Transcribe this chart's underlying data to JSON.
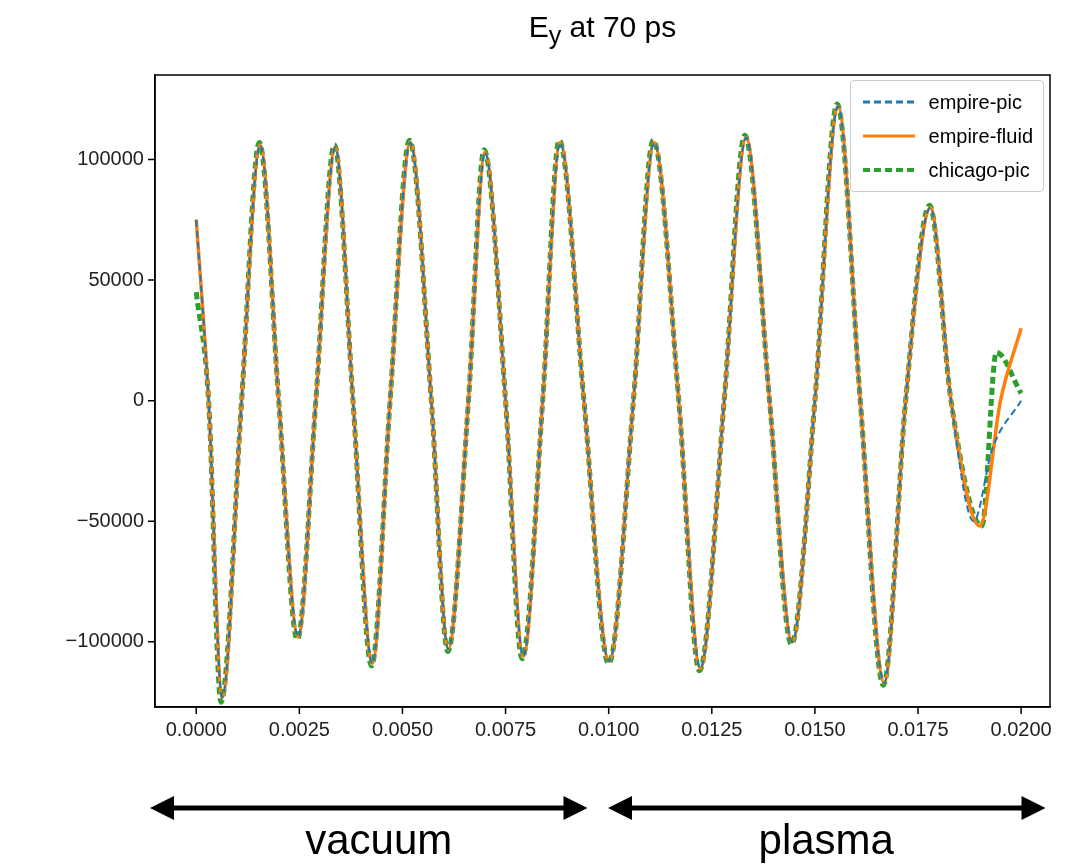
{
  "chart_data": {
    "type": "line",
    "title": "E$_{y}$ at 70 ps",
    "xlim": [
      -0.001,
      0.0207
    ],
    "ylim": [
      -127000,
      135000
    ],
    "xticks": [
      {
        "value": 0,
        "label": "0.0000"
      },
      {
        "value": 0.0025,
        "label": "0.0025"
      },
      {
        "value": 0.005,
        "label": "0.0050"
      },
      {
        "value": 0.0075,
        "label": "0.0075"
      },
      {
        "value": 0.01,
        "label": "0.0100"
      },
      {
        "value": 0.0125,
        "label": "0.0125"
      },
      {
        "value": 0.015,
        "label": "0.0150"
      },
      {
        "value": 0.0175,
        "label": "0.0175"
      },
      {
        "value": 0.02,
        "label": "0.0200"
      }
    ],
    "yticks": [
      {
        "value": -100000,
        "label": "−100000"
      },
      {
        "value": -50000,
        "label": "−50000"
      },
      0,
      50000,
      100000
    ],
    "grid": false,
    "legend": "top right",
    "marker": "none",
    "annotations": [
      "vacuum",
      "plasma"
    ],
    "series": [
      {
        "name": "empire-pic",
        "color": "#1f77b4",
        "line_style": "dashed",
        "x": [
          0,
          0.0003,
          0.00063,
          0.0011,
          0.00155,
          0.002,
          0.00247,
          0.0029,
          0.00337,
          0.0038,
          0.00427,
          0.0047,
          0.00519,
          0.0057,
          0.00611,
          0.0066,
          0.007,
          0.0075,
          0.00793,
          0.0084,
          0.00882,
          0.0094,
          0.01001,
          0.0106,
          0.0111,
          0.0117,
          0.01222,
          0.0128,
          0.01333,
          0.0139,
          0.01445,
          0.015,
          0.01556,
          0.0161,
          0.01668,
          0.0172,
          0.0178,
          0.0183,
          0.01885,
          0.0193,
          0.02
        ],
        "values": [
          75000,
          0,
          -123000,
          0,
          106000,
          0,
          -98000,
          0,
          105000,
          0,
          -109000,
          0,
          107000,
          0,
          -103000,
          0,
          103000,
          0,
          -106000,
          0,
          107000,
          0,
          -108000,
          0,
          107000,
          0,
          -111000,
          0,
          109000,
          0,
          -100000,
          0,
          122000,
          0,
          -117000,
          0,
          80000,
          0,
          -50000,
          -20000,
          0
        ]
      },
      {
        "name": "empire-fluid",
        "color": "#ff7f0e",
        "line_style": "solid",
        "x": [
          0,
          0.0003,
          0.00063,
          0.0011,
          0.00155,
          0.002,
          0.00247,
          0.0029,
          0.00337,
          0.0038,
          0.00427,
          0.0047,
          0.00519,
          0.0057,
          0.00611,
          0.0066,
          0.007,
          0.0075,
          0.00793,
          0.0084,
          0.00882,
          0.0094,
          0.01001,
          0.0106,
          0.0111,
          0.0117,
          0.01222,
          0.0128,
          0.01333,
          0.0139,
          0.01445,
          0.015,
          0.01556,
          0.0161,
          0.01668,
          0.0172,
          0.0178,
          0.0183,
          0.019,
          0.0195,
          0.02
        ],
        "values": [
          75000,
          0,
          -123000,
          0,
          106000,
          0,
          -98000,
          0,
          105000,
          0,
          -109000,
          0,
          107000,
          0,
          -103000,
          0,
          103000,
          0,
          -106000,
          0,
          107000,
          0,
          -108000,
          0,
          107000,
          0,
          -111000,
          0,
          109000,
          0,
          -100000,
          0,
          122000,
          0,
          -117000,
          0,
          80000,
          0,
          -52000,
          0,
          30000
        ]
      },
      {
        "name": "chicago-pic",
        "color": "#2ca02c",
        "line_style": "dashed",
        "x": [
          0,
          0.0003,
          0.0006,
          0.0011,
          0.00153,
          0.002,
          0.00245,
          0.0029,
          0.00335,
          0.0038,
          0.00425,
          0.0047,
          0.00517,
          0.0057,
          0.0061,
          0.0066,
          0.00698,
          0.0075,
          0.0079,
          0.0084,
          0.0088,
          0.0094,
          0.01,
          0.0106,
          0.01108,
          0.0117,
          0.0122,
          0.0128,
          0.0133,
          0.0139,
          0.01443,
          0.015,
          0.01554,
          0.0161,
          0.01666,
          0.0172,
          0.01778,
          0.0183,
          0.01905,
          0.0194,
          0.02
        ],
        "values": [
          45000,
          0,
          -125000,
          0,
          107000,
          0,
          -99000,
          0,
          106000,
          0,
          -110000,
          0,
          108000,
          0,
          -104000,
          0,
          104000,
          0,
          -107000,
          0,
          108000,
          0,
          -109000,
          0,
          108000,
          0,
          -112000,
          0,
          110000,
          0,
          -101000,
          0,
          123000,
          0,
          -118000,
          0,
          81000,
          0,
          -52000,
          20000,
          3000
        ]
      }
    ]
  }
}
